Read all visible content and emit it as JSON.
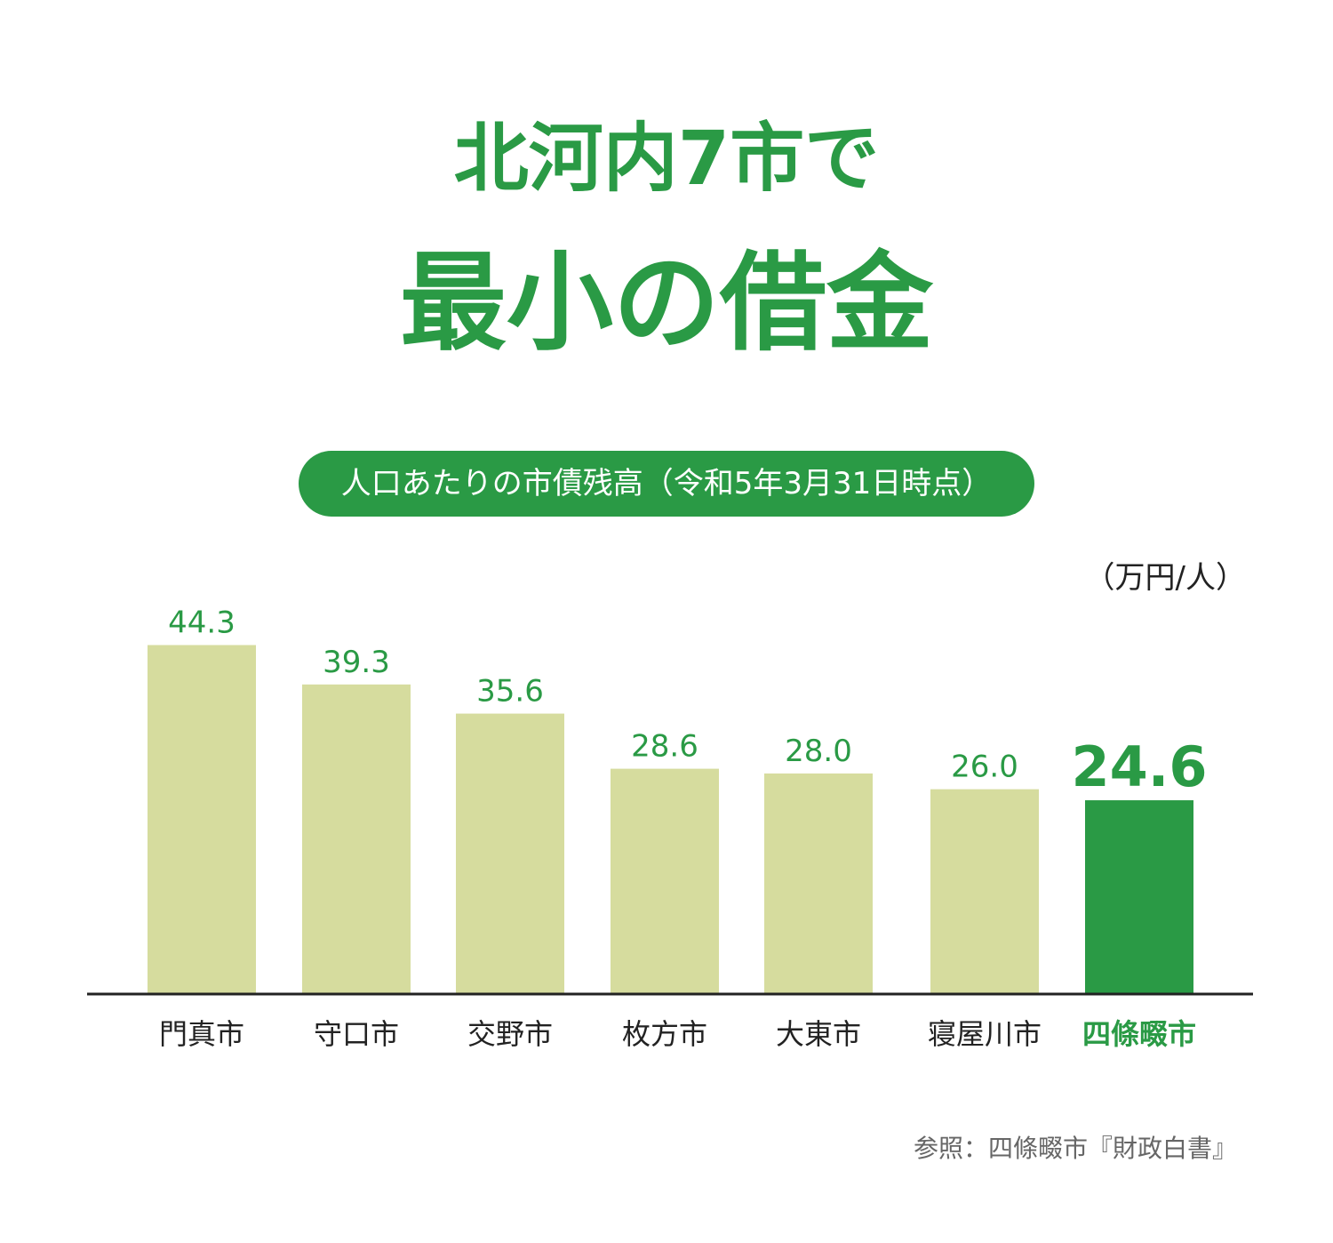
{
  "title": {
    "line1": "北河内7市で",
    "line2": "最小の借金"
  },
  "chart_data": {
    "type": "bar",
    "title": "人口あたりの市債残高（令和5年3月31日時点）",
    "unit": "（万円/人）",
    "categories": [
      "門真市",
      "守口市",
      "交野市",
      "枚方市",
      "大東市",
      "寝屋川市",
      "四條畷市"
    ],
    "values": [
      44.3,
      39.3,
      35.6,
      28.6,
      28.0,
      26.0,
      24.6
    ],
    "value_labels": [
      "44.3",
      "39.3",
      "35.6",
      "28.6",
      "28.0",
      "26.0",
      "24.6"
    ],
    "highlight_index": 6,
    "ylim": [
      0,
      50
    ],
    "grid": false,
    "legend": "none"
  },
  "colors": {
    "accent": "#2a9a45",
    "bar": "#d6dc9e",
    "bar_highlight": "#2a9a45",
    "axis": "#222222"
  },
  "source": "参照：四條畷市『財政白書』"
}
